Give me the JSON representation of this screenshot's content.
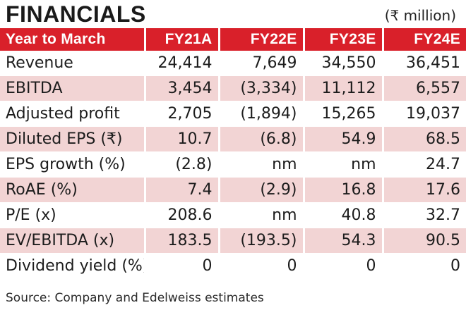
{
  "title": "FINANCIALS",
  "unit": "(₹ million)",
  "table": {
    "columns": [
      "Year to March",
      "FY21A",
      "FY22E",
      "FY23E",
      "FY24E"
    ],
    "rows": [
      {
        "label": "Revenue",
        "values": [
          "24,414",
          "7,649",
          "34,550",
          "36,451"
        ]
      },
      {
        "label": "EBITDA",
        "values": [
          "3,454",
          "(3,334)",
          "11,112",
          "6,557"
        ]
      },
      {
        "label": "Adjusted profit",
        "values": [
          "2,705",
          "(1,894)",
          "15,265",
          "19,037"
        ]
      },
      {
        "label": "Diluted EPS (₹)",
        "values": [
          "10.7",
          "(6.8)",
          "54.9",
          "68.5"
        ]
      },
      {
        "label": "EPS growth (%)",
        "values": [
          "(2.8)",
          "nm",
          "nm",
          "24.7"
        ]
      },
      {
        "label": "RoAE (%)",
        "values": [
          "7.4",
          "(2.9)",
          "16.8",
          "17.6"
        ]
      },
      {
        "label": "P/E (x)",
        "values": [
          "208.6",
          "nm",
          "40.8",
          "32.7"
        ]
      },
      {
        "label": "EV/EBITDA (x)",
        "values": [
          "183.5",
          "(193.5)",
          "54.3",
          "90.5"
        ]
      },
      {
        "label": "Dividend yield (%)",
        "values": [
          "0",
          "0",
          "0",
          "0"
        ]
      }
    ]
  },
  "source": "Source: Company and Edelweiss estimates",
  "colors": {
    "header_bg": "#d9202a",
    "header_text": "#ffffff",
    "shaded_row": "#f2d4d4"
  }
}
